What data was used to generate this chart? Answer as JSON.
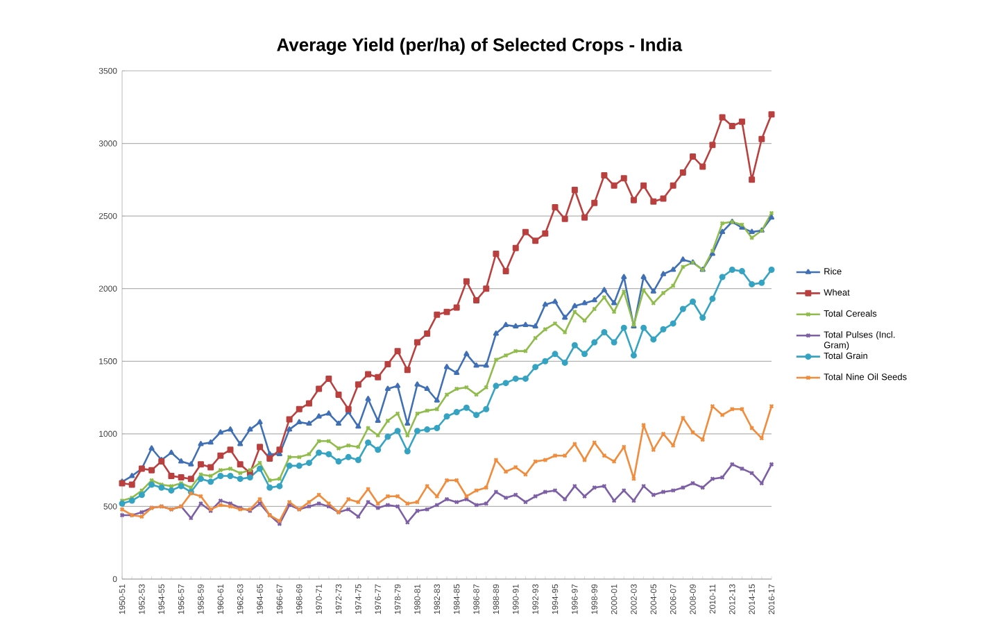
{
  "chart_data": {
    "type": "line",
    "title": "Average Yield (per/ha) of Selected Crops - India",
    "categories": [
      "1950-51",
      null,
      "1952-53",
      null,
      "1954-55",
      null,
      "1956-57",
      null,
      "1958-59",
      null,
      "1960-61",
      null,
      "1962-63",
      null,
      "1964-65",
      null,
      "1966-67",
      null,
      "1968-69",
      null,
      "1970-71",
      null,
      "1972-73",
      null,
      "1974-75",
      null,
      "1976-77",
      null,
      "1978-79",
      null,
      "1980-81",
      null,
      "1982-83",
      null,
      "1984-85",
      null,
      "1986-87",
      null,
      "1988-89",
      null,
      "1990-91",
      null,
      "1992-93",
      null,
      "1994-95",
      null,
      "1996-97",
      null,
      "1998-99",
      null,
      "2000-01",
      null,
      "2002-03",
      null,
      "2004-05",
      null,
      "2006-07",
      null,
      "2008-09",
      null,
      "2010-11",
      null,
      "2012-13",
      null,
      "2014-15",
      null,
      "2016-17"
    ],
    "ylim": [
      0,
      3500
    ],
    "yticks": [
      0,
      500,
      1000,
      1500,
      2000,
      2500,
      3000,
      3500
    ],
    "grid": "y",
    "legend": "right",
    "series": [
      {
        "name": "Rice",
        "color": "#3f6fb5",
        "marker": "triangle",
        "values": [
          670,
          710,
          760,
          900,
          820,
          870,
          810,
          790,
          930,
          940,
          1010,
          1030,
          930,
          1030,
          1080,
          860,
          860,
          1030,
          1080,
          1070,
          1120,
          1140,
          1070,
          1150,
          1050,
          1240,
          1090,
          1310,
          1330,
          1070,
          1340,
          1310,
          1230,
          1460,
          1420,
          1550,
          1470,
          1470,
          1690,
          1750,
          1740,
          1750,
          1740,
          1890,
          1910,
          1800,
          1880,
          1900,
          1920,
          1990,
          1900,
          2080,
          1740,
          2080,
          1980,
          2100,
          2130,
          2200,
          2180,
          2130,
          2240,
          2390,
          2460,
          2420,
          2390,
          2400,
          2490
        ]
      },
      {
        "name": "Wheat",
        "color": "#b9403e",
        "marker": "square",
        "values": [
          660,
          650,
          760,
          750,
          810,
          710,
          700,
          690,
          790,
          770,
          850,
          890,
          790,
          730,
          910,
          830,
          890,
          1100,
          1170,
          1210,
          1310,
          1380,
          1270,
          1170,
          1340,
          1410,
          1390,
          1480,
          1570,
          1440,
          1630,
          1690,
          1820,
          1840,
          1870,
          2050,
          1920,
          2000,
          2240,
          2120,
          2280,
          2390,
          2330,
          2380,
          2560,
          2480,
          2680,
          2490,
          2590,
          2780,
          2710,
          2760,
          2610,
          2710,
          2600,
          2620,
          2710,
          2800,
          2910,
          2840,
          2990,
          3180,
          3120,
          3150,
          2750,
          3030,
          3200
        ]
      },
      {
        "name": "Total Cereals",
        "color": "#8fbc4a",
        "marker": "cross",
        "values": [
          540,
          560,
          610,
          680,
          650,
          640,
          660,
          630,
          720,
          710,
          750,
          760,
          730,
          750,
          800,
          680,
          690,
          840,
          840,
          860,
          950,
          950,
          900,
          920,
          910,
          1040,
          990,
          1090,
          1140,
          990,
          1140,
          1160,
          1170,
          1270,
          1310,
          1320,
          1270,
          1320,
          1510,
          1540,
          1570,
          1570,
          1660,
          1720,
          1760,
          1700,
          1840,
          1780,
          1860,
          1940,
          1840,
          1980,
          1750,
          1990,
          1900,
          1970,
          2020,
          2150,
          2180,
          2130,
          2260,
          2450,
          2460,
          2440,
          2350,
          2400,
          2520
        ]
      },
      {
        "name": "Total Pulses (Incl. Gram)",
        "color": "#7d5fa6",
        "marker": "cross",
        "values": [
          440,
          440,
          460,
          490,
          500,
          480,
          500,
          420,
          520,
          470,
          540,
          520,
          490,
          470,
          520,
          440,
          380,
          510,
          480,
          500,
          520,
          500,
          460,
          480,
          430,
          530,
          490,
          510,
          500,
          390,
          470,
          480,
          510,
          550,
          530,
          550,
          510,
          520,
          600,
          560,
          580,
          530,
          570,
          600,
          610,
          550,
          640,
          570,
          630,
          640,
          540,
          610,
          540,
          640,
          580,
          600,
          610,
          630,
          660,
          630,
          690,
          700,
          790,
          760,
          730,
          660,
          790
        ]
      },
      {
        "name": "Total Grain",
        "color": "#35a3c2",
        "marker": "circle",
        "values": [
          520,
          540,
          580,
          650,
          630,
          610,
          640,
          600,
          690,
          670,
          710,
          710,
          690,
          700,
          760,
          630,
          640,
          780,
          780,
          800,
          870,
          860,
          810,
          840,
          820,
          940,
          890,
          980,
          1020,
          880,
          1020,
          1030,
          1040,
          1120,
          1150,
          1180,
          1130,
          1170,
          1330,
          1350,
          1380,
          1380,
          1460,
          1500,
          1550,
          1490,
          1610,
          1550,
          1630,
          1700,
          1630,
          1730,
          1540,
          1730,
          1650,
          1720,
          1760,
          1860,
          1910,
          1800,
          1930,
          2080,
          2130,
          2120,
          2030,
          2040,
          2130
        ]
      },
      {
        "name": "Total Nine Oil Seeds",
        "color": "#f08c3c",
        "marker": "cross",
        "values": [
          480,
          440,
          430,
          490,
          500,
          480,
          500,
          590,
          570,
          480,
          510,
          500,
          480,
          480,
          550,
          440,
          400,
          530,
          480,
          530,
          580,
          520,
          460,
          550,
          530,
          620,
          520,
          570,
          570,
          520,
          530,
          640,
          570,
          680,
          680,
          570,
          610,
          630,
          820,
          740,
          770,
          720,
          810,
          820,
          850,
          850,
          930,
          820,
          940,
          850,
          810,
          910,
          690,
          1060,
          890,
          1000,
          920,
          1110,
          1010,
          960,
          1190,
          1130,
          1170,
          1170,
          1040,
          970,
          1190
        ]
      }
    ]
  }
}
